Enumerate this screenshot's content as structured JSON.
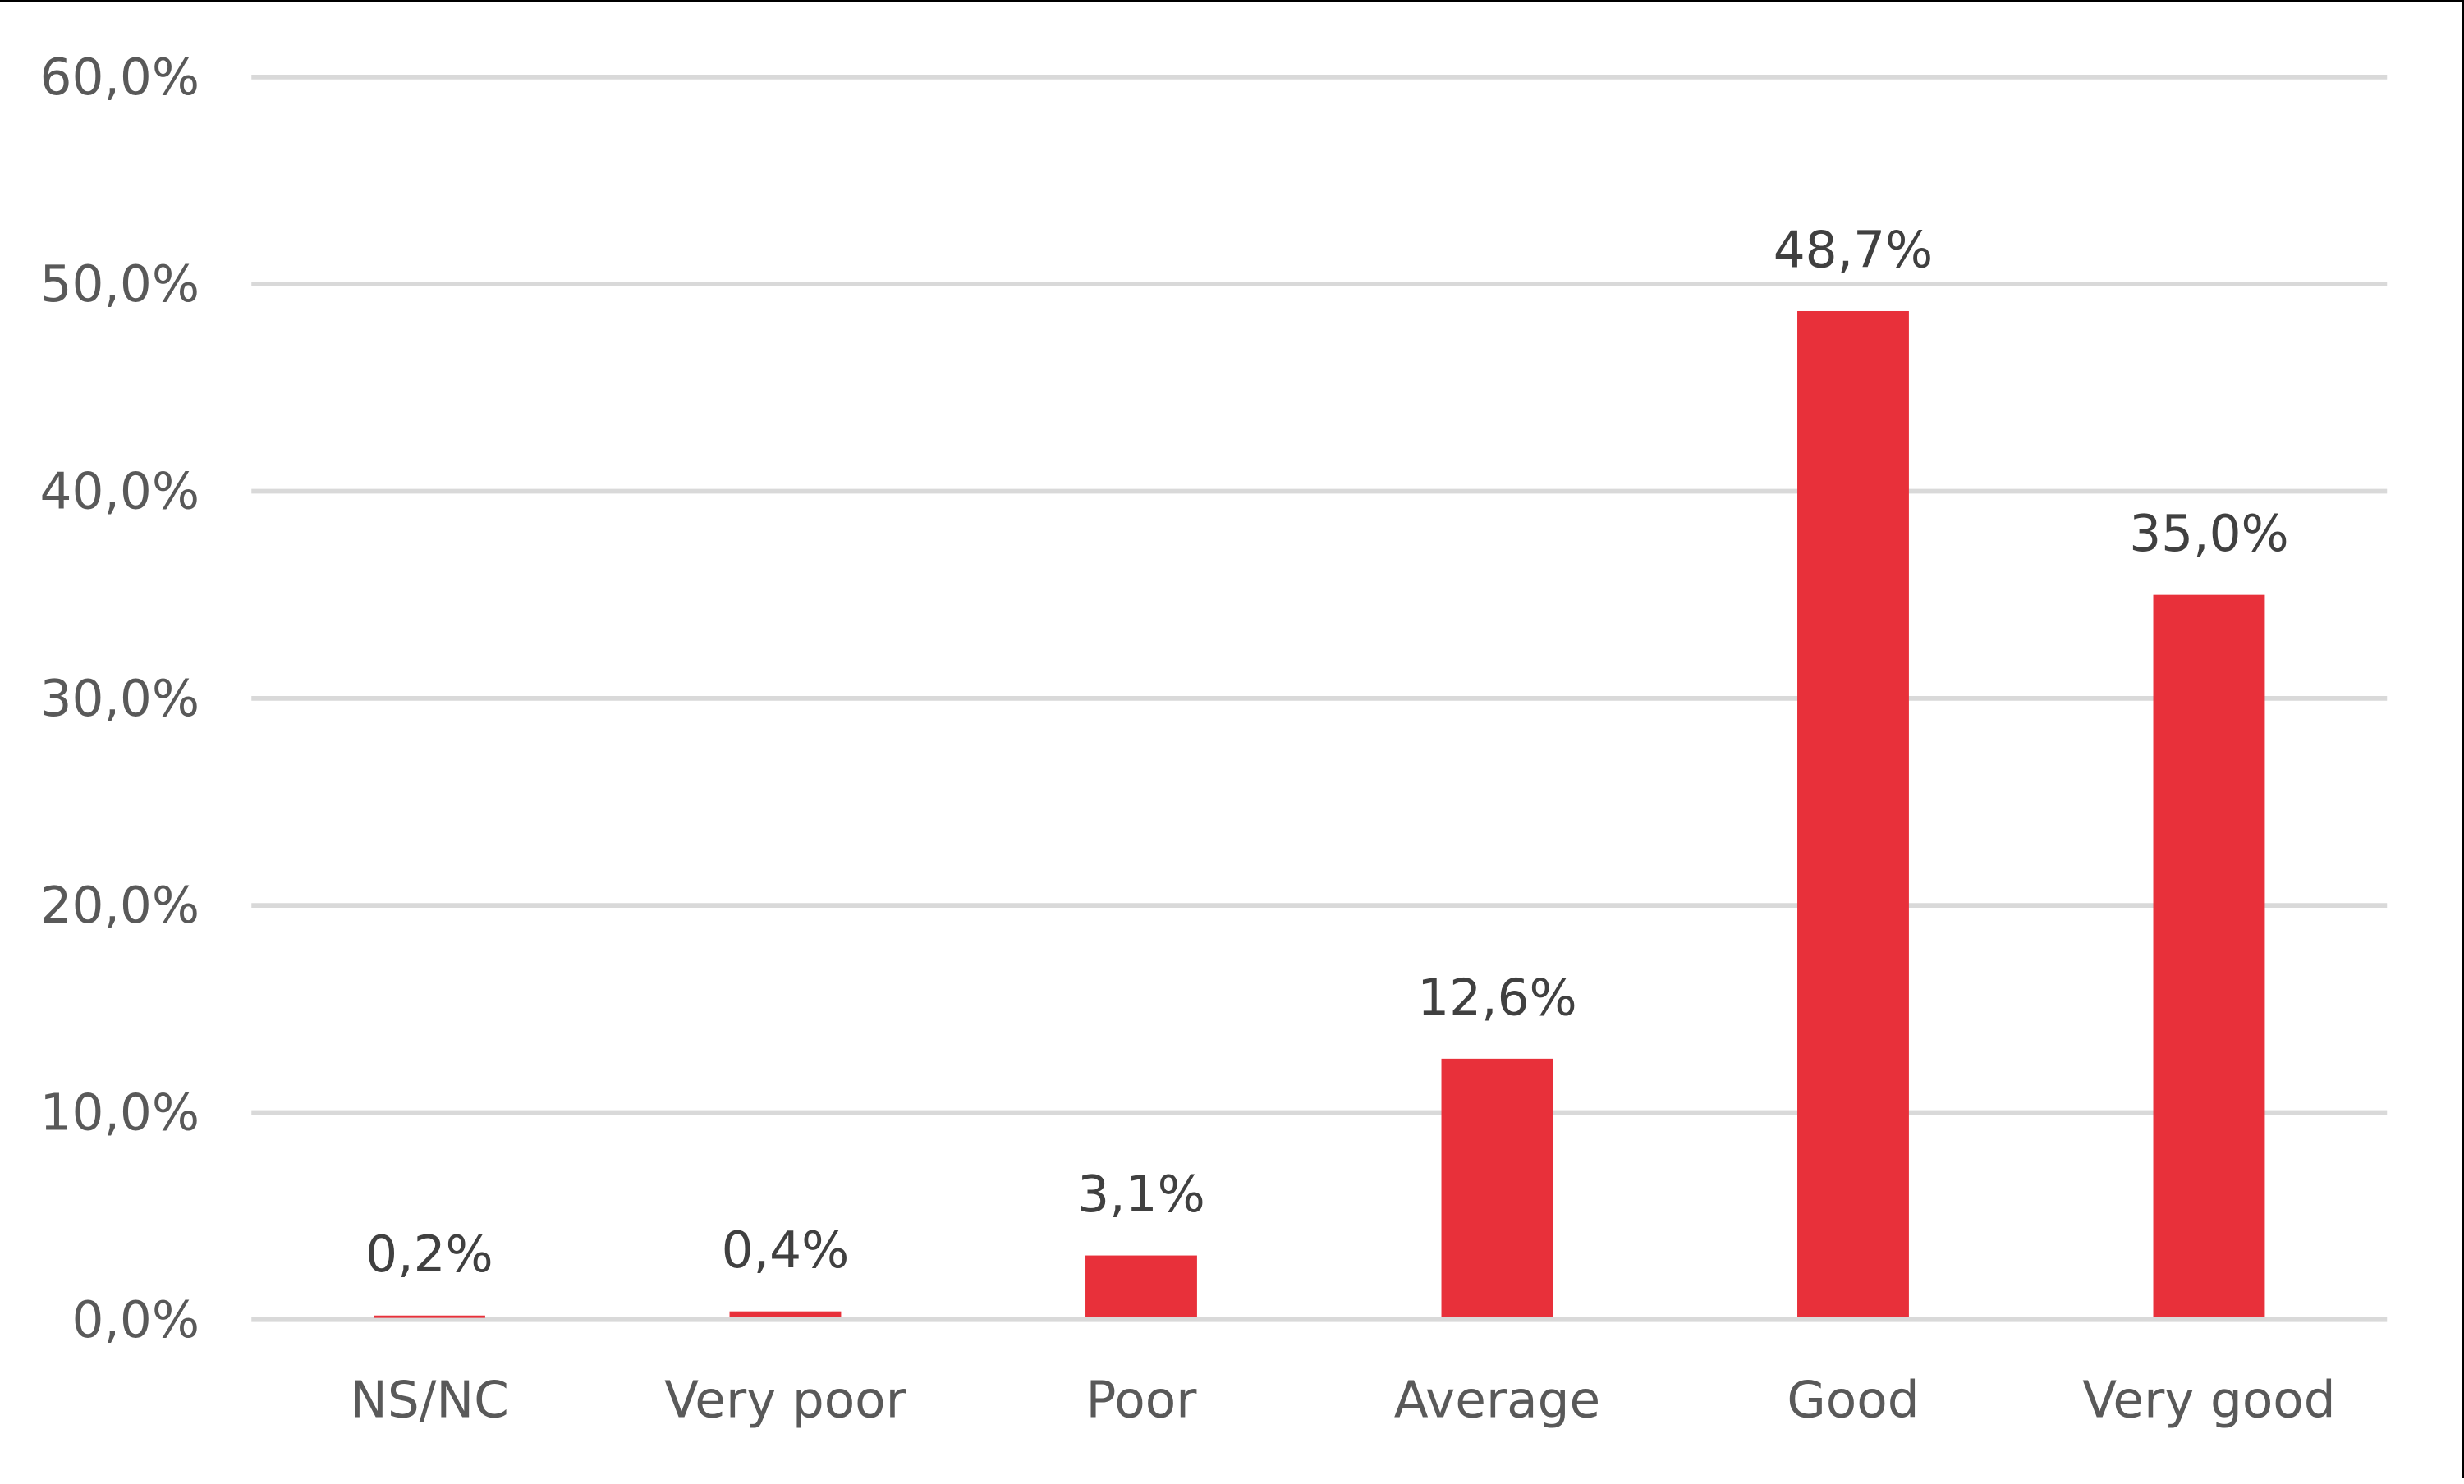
{
  "chart_data": {
    "type": "bar",
    "title": "",
    "xlabel": "",
    "ylabel": "",
    "categories": [
      "NS/NC",
      "Very poor",
      "Poor",
      "Average",
      "Good",
      "Very good"
    ],
    "values": [
      0.2,
      0.4,
      3.1,
      12.6,
      48.7,
      35.0
    ],
    "data_labels": [
      "0,2%",
      "0,4%",
      "3,1%",
      "12,6%",
      "48,7%",
      "35,0%"
    ],
    "ylim": [
      0,
      60
    ],
    "yticks": [
      0,
      10,
      20,
      30,
      40,
      50,
      60
    ],
    "ytick_labels": [
      "0,0%",
      "10,0%",
      "20,0%",
      "30,0%",
      "40,0%",
      "50,0%",
      "60,0%"
    ],
    "grid": true,
    "legend": null,
    "colors": {
      "bar": "#E8303A",
      "grid": "#D9D9D9",
      "axis_text": "#595959",
      "label_text": "#404040"
    }
  }
}
